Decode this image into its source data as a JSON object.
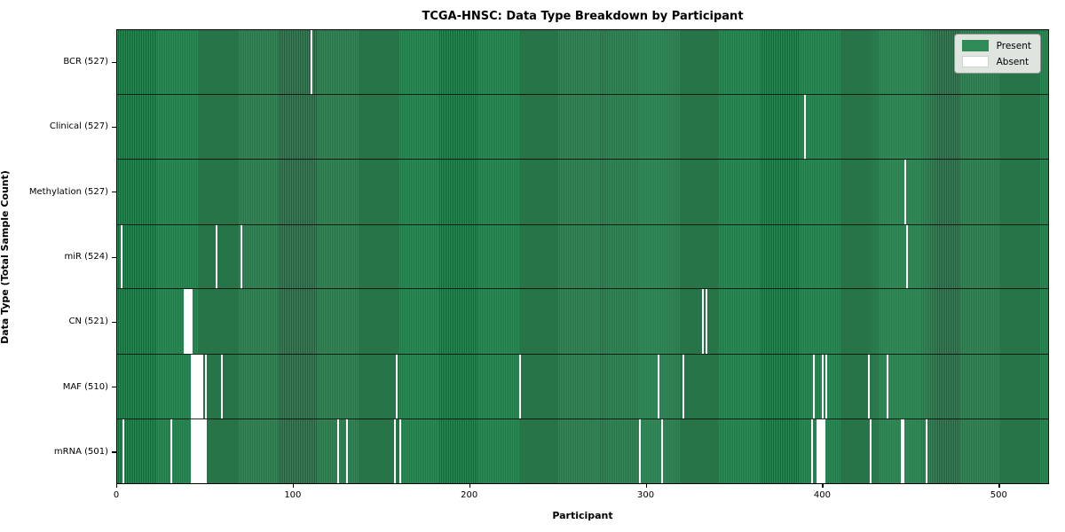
{
  "legend": {
    "present_label": "Present",
    "absent_label": "Absent"
  },
  "colors": {
    "present": "#2e8b57",
    "present_edge": "#1f5c39",
    "absent": "#ffffff",
    "legend_bg": "#e8ebe7"
  },
  "chart_data": {
    "type": "heatmap",
    "title": "TCGA-HNSC: Data Type Breakdown by Participant",
    "xlabel": "Participant",
    "ylabel": "Data Type (Total Sample Count)",
    "legend_entries": [
      "Present",
      "Absent"
    ],
    "legend_position": "upper right",
    "n_participants": 528,
    "x_axis_max": 528.5,
    "x_ticks": [
      0,
      100,
      200,
      300,
      400,
      500
    ],
    "rows": [
      {
        "data_type": "BCR",
        "label": "BCR (527)",
        "present_count": 527,
        "absent_participants": [
          110
        ]
      },
      {
        "data_type": "Clinical",
        "label": "Clinical (527)",
        "present_count": 527,
        "absent_participants": [
          390
        ]
      },
      {
        "data_type": "Methylation",
        "label": "Methylation (527)",
        "present_count": 527,
        "absent_participants": [
          447
        ]
      },
      {
        "data_type": "miR",
        "label": "miR (524)",
        "present_count": 524,
        "absent_participants": [
          2,
          56,
          70,
          448
        ]
      },
      {
        "data_type": "CN",
        "label": "CN (521)",
        "present_count": 521,
        "absent_participants": [
          38,
          39,
          40,
          41,
          42,
          332,
          334
        ]
      },
      {
        "data_type": "MAF",
        "label": "MAF (510)",
        "present_count": 510,
        "absent_participants": [
          42,
          43,
          44,
          45,
          46,
          47,
          48,
          50,
          59,
          158,
          228,
          307,
          321,
          395,
          400,
          402,
          426,
          437
        ]
      },
      {
        "data_type": "mRNA",
        "label": "mRNA (501)",
        "present_count": 501,
        "absent_participants": [
          3,
          30,
          42,
          43,
          44,
          45,
          46,
          47,
          48,
          49,
          50,
          125,
          130,
          157,
          160,
          296,
          309,
          394,
          397,
          398,
          399,
          400,
          401,
          427,
          445,
          446,
          459
        ]
      }
    ]
  }
}
